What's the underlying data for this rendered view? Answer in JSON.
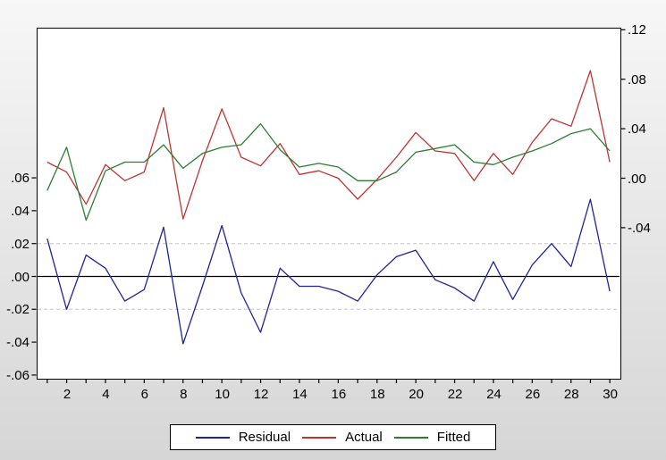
{
  "window": {
    "kind": "eviews-graph-panel"
  },
  "legend": {
    "entries": [
      {
        "label": "Residual",
        "color": "#22229b"
      },
      {
        "label": "Actual",
        "color": "#c03333"
      },
      {
        "label": "Fitted",
        "color": "#2e7d32"
      }
    ]
  },
  "chart_data": {
    "type": "line",
    "title": "",
    "xlabel": "",
    "ylabel_left": "",
    "ylabel_right": "",
    "x": [
      1,
      2,
      3,
      4,
      5,
      6,
      7,
      8,
      9,
      10,
      11,
      12,
      13,
      14,
      15,
      16,
      17,
      18,
      19,
      20,
      21,
      22,
      23,
      24,
      25,
      26,
      27,
      28,
      29,
      30
    ],
    "x_axis": {
      "tick_labels": [
        "2",
        "4",
        "6",
        "8",
        "10",
        "12",
        "14",
        "16",
        "18",
        "20",
        "22",
        "24",
        "26",
        "28",
        "30"
      ],
      "tick_values": [
        2,
        4,
        6,
        8,
        10,
        12,
        14,
        16,
        18,
        20,
        22,
        24,
        26,
        28,
        30
      ],
      "minor_ticks_every": 1,
      "range": [
        0.5,
        30.5
      ]
    },
    "left_axis": {
      "applies_to": "Residual",
      "tick_labels": [
        ".06",
        ".04",
        ".02",
        ".00",
        "-.02",
        "-.04",
        "-.06"
      ],
      "tick_values": [
        0.06,
        0.04,
        0.02,
        0.0,
        -0.02,
        -0.04,
        -0.06
      ]
    },
    "right_axis": {
      "applies_to": "Actual, Fitted",
      "tick_labels": [
        ".12",
        ".08",
        ".04",
        ".00",
        "-.04"
      ],
      "tick_values": [
        0.12,
        0.08,
        0.04,
        0.0,
        -0.04
      ]
    },
    "gridlines": {
      "zero_line_left_scale": 0.0,
      "dashed_left_scale": [
        0.02,
        -0.02
      ],
      "grid": "off"
    },
    "series": [
      {
        "name": "Residual",
        "axis": "left",
        "color": "#22229b",
        "values": [
          0.023,
          -0.02,
          0.013,
          0.005,
          -0.015,
          -0.008,
          0.03,
          -0.041,
          -0.006,
          0.031,
          -0.01,
          -0.034,
          0.005,
          -0.006,
          -0.006,
          -0.009,
          -0.015,
          0.001,
          0.012,
          0.016,
          -0.002,
          -0.007,
          -0.015,
          0.009,
          -0.014,
          0.007,
          0.02,
          0.006,
          0.047,
          -0.009
        ]
      },
      {
        "name": "Actual",
        "axis": "right",
        "color": "#c03333",
        "values": [
          0.013,
          0.005,
          -0.021,
          0.011,
          -0.002,
          0.005,
          0.057,
          -0.033,
          0.014,
          0.056,
          0.017,
          0.01,
          0.028,
          0.003,
          0.006,
          0.0,
          -0.017,
          -0.001,
          0.017,
          0.037,
          0.022,
          0.02,
          -0.002,
          0.02,
          0.003,
          0.029,
          0.048,
          0.042,
          0.087,
          0.013
        ]
      },
      {
        "name": "Fitted",
        "axis": "right",
        "color": "#2e7d32",
        "values": [
          -0.01,
          0.025,
          -0.034,
          0.006,
          0.013,
          0.013,
          0.027,
          0.008,
          0.02,
          0.025,
          0.027,
          0.044,
          0.023,
          0.009,
          0.012,
          0.009,
          -0.002,
          -0.002,
          0.005,
          0.021,
          0.024,
          0.027,
          0.013,
          0.011,
          0.017,
          0.022,
          0.028,
          0.036,
          0.04,
          0.022
        ]
      }
    ],
    "legend_position": "bottom-center"
  }
}
